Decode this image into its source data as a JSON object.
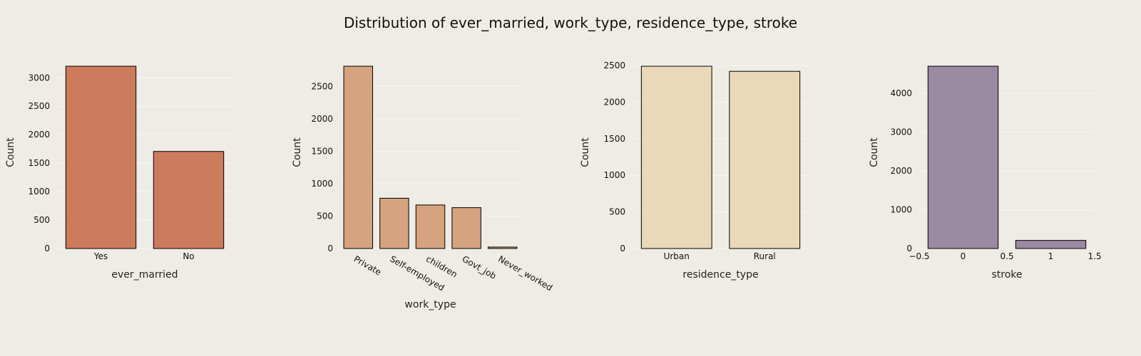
{
  "title": "Distribution of ever_married, work_type, residence_type, stroke",
  "chart_data": [
    {
      "type": "bar",
      "categories": [
        "Yes",
        "No"
      ],
      "values": [
        3204,
        1706
      ],
      "xlabel": "ever_married",
      "ylabel": "Count",
      "ylim": [
        0,
        3204
      ],
      "yticks": [
        0,
        500,
        1000,
        1500,
        2000,
        2500,
        3000
      ],
      "color": "#cc7b5c",
      "grid": true
    },
    {
      "type": "bar",
      "categories": [
        "Private",
        "Self-employed",
        "children",
        "Govt_job",
        "Never_worked"
      ],
      "values": [
        2811,
        775,
        671,
        630,
        22
      ],
      "xlabel": "work_type",
      "ylabel": "Count",
      "ylim": [
        0,
        2811
      ],
      "yticks": [
        0,
        500,
        1000,
        1500,
        2000,
        2500
      ],
      "color": "#d5a37e",
      "grid": true
    },
    {
      "type": "bar",
      "categories": [
        "Urban",
        "Rural"
      ],
      "values": [
        2490,
        2420
      ],
      "xlabel": "residence_type",
      "ylabel": "Count",
      "ylim": [
        0,
        2490
      ],
      "yticks": [
        0,
        500,
        1000,
        1500,
        2000,
        2500
      ],
      "color": "#ead9b9",
      "grid": true
    },
    {
      "type": "bar",
      "x": [
        0,
        1
      ],
      "values": [
        4700,
        209
      ],
      "xlabel": "stroke",
      "ylabel": "Count",
      "xlim": [
        -0.5,
        1.5
      ],
      "xticks": [
        "−0.5",
        "0",
        "0.5",
        "1",
        "1.5"
      ],
      "ylim": [
        0,
        4700
      ],
      "yticks": [
        0,
        1000,
        2000,
        3000,
        4000
      ],
      "color": "#9b8aa3",
      "grid": true
    }
  ]
}
